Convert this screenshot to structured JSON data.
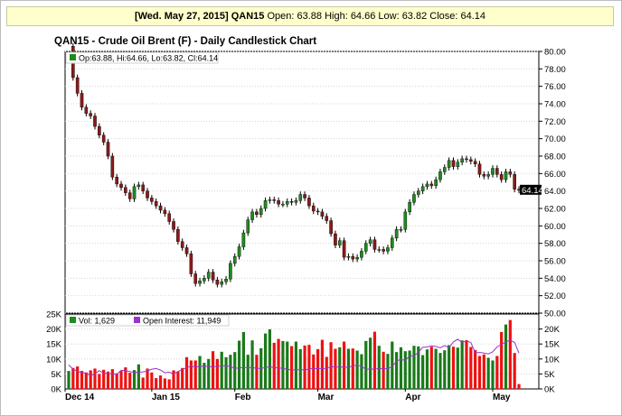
{
  "header": {
    "date_label": "[Wed. May 27, 2015]",
    "symbol": "QAN15",
    "ohlc_text": " Open: 63.88 High: 64.66 Low: 63.82 Close: 64.14"
  },
  "colors": {
    "up": "#1e8c1e",
    "down": "#8b1a1a",
    "vol_up": "#1a7a1a",
    "vol_down": "#ee1111",
    "open_interest": "#9933cc",
    "last_price_bg": "#000000"
  },
  "chart_data": [
    {
      "type": "candlestick",
      "title": "QAN15 - Crude Oil Brent (F) - Daily Candlestick Chart",
      "legend": "Op:63.88, Hi:64.66, Lo:63.82, Cl:64.14",
      "last_price_label": "64.14",
      "ylim": [
        50,
        80
      ],
      "yticks": [
        "80.00",
        "78.00",
        "76.00",
        "74.00",
        "72.00",
        "70.00",
        "68.00",
        "66.00",
        "64.00",
        "62.00",
        "60.00",
        "58.00",
        "56.00",
        "54.00",
        "52.00",
        "50.00"
      ],
      "x_labels": [
        "Dec 14",
        "Jan 15",
        "Feb",
        "Mar",
        "Apr",
        "May"
      ],
      "closes": [
        80.6,
        77.0,
        75.2,
        73.6,
        72.9,
        72.6,
        71.4,
        70.4,
        69.6,
        68.0,
        65.6,
        64.8,
        64.4,
        63.8,
        63.1,
        64.5,
        64.7,
        64.0,
        63.2,
        62.8,
        62.3,
        61.8,
        61.4,
        60.5,
        59.6,
        58.2,
        57.5,
        56.8,
        54.5,
        53.4,
        53.7,
        54.0,
        54.7,
        53.8,
        53.3,
        53.6,
        53.9,
        55.7,
        56.5,
        57.6,
        59.2,
        60.7,
        61.6,
        61.3,
        62.0,
        62.9,
        63.0,
        62.9,
        62.5,
        62.5,
        62.8,
        62.7,
        62.9,
        63.6,
        63.2,
        62.3,
        61.7,
        61.6,
        61.1,
        60.6,
        59.1,
        57.8,
        58.3,
        56.4,
        56.5,
        56.2,
        56.4,
        57.1,
        58.0,
        58.4,
        57.3,
        57.3,
        57.1,
        57.5,
        58.6,
        59.6,
        59.6,
        61.6,
        62.7,
        63.6,
        64.0,
        64.5,
        64.8,
        64.6,
        65.3,
        66.2,
        66.7,
        67.5,
        66.8,
        67.3,
        67.7,
        67.6,
        67.4,
        67.1,
        65.9,
        65.7,
        65.9,
        66.6,
        65.9,
        65.3,
        66.2,
        65.9,
        64.2,
        64.1
      ],
      "volume": {
        "ylim": [
          0,
          25000
        ],
        "yticks": [
          "25K",
          "20K",
          "15K",
          "10K",
          "5K",
          "0K"
        ],
        "legend_volume": "Vol: 1,629",
        "legend_open_interest": "Open Interest: 11,949",
        "values": [
          6000,
          7000,
          7500,
          6000,
          5500,
          6200,
          6800,
          5000,
          6400,
          5800,
          6600,
          5200,
          6000,
          7200,
          5400,
          6300,
          8200,
          3800,
          6800,
          5500,
          3600,
          4500,
          3500,
          3200,
          6200,
          5800,
          7000,
          10600,
          9500,
          9500,
          11000,
          8700,
          10000,
          12600,
          10000,
          12400,
          10600,
          11400,
          12300,
          16100,
          19000,
          11400,
          16200,
          11400,
          13600,
          18500,
          19900,
          15400,
          16700,
          16000,
          15800,
          14300,
          15800,
          13300,
          14500,
          14700,
          11500,
          13300,
          16400,
          10700,
          15600,
          13400,
          13900,
          15800,
          13400,
          13500,
          12800,
          11600,
          16000,
          17100,
          19100,
          14400,
          12400,
          11700,
          15800,
          12300,
          13900,
          12600,
          12800,
          14400,
          14200,
          11300,
          13200,
          14100,
          13400,
          12000,
          12900,
          14600,
          14100,
          13800,
          16200,
          16300,
          14000,
          13000,
          11000,
          11500,
          10400,
          9500,
          11000,
          19000,
          21500,
          23000,
          12000,
          1629
        ],
        "open_interest": [
          8000,
          6600,
          5900,
          5400,
          5300,
          4400,
          5100,
          6100,
          5200,
          5200,
          5000,
          4900,
          6200,
          6100,
          5800,
          5500,
          5600,
          5700,
          6000,
          6600,
          6800,
          6300,
          5400,
          5600,
          5000,
          5800,
          6500,
          7100,
          7600,
          7300,
          7500,
          7600,
          7400,
          7400,
          7500,
          7700,
          7700,
          7500,
          6900,
          7000,
          7200,
          7100,
          7200,
          6800,
          6900,
          7100,
          7400,
          7100,
          7000,
          6900,
          6500,
          6400,
          6300,
          6500,
          6300,
          6700,
          6800,
          6800,
          6800,
          6800,
          7500,
          7300,
          7300,
          7300,
          7200,
          7700,
          7900,
          7600,
          6500,
          6700,
          6500,
          6900,
          6700,
          6800,
          7400,
          9300,
          9900,
          9500,
          11100,
          11000,
          12300,
          13900,
          14000,
          14400,
          14200,
          13700,
          14500,
          13800,
          15700,
          16600,
          15500,
          16000,
          15500,
          12000,
          12200,
          12000,
          11700,
          12400,
          14000,
          14900,
          15700,
          16300,
          15500,
          11949
        ]
      }
    }
  ]
}
